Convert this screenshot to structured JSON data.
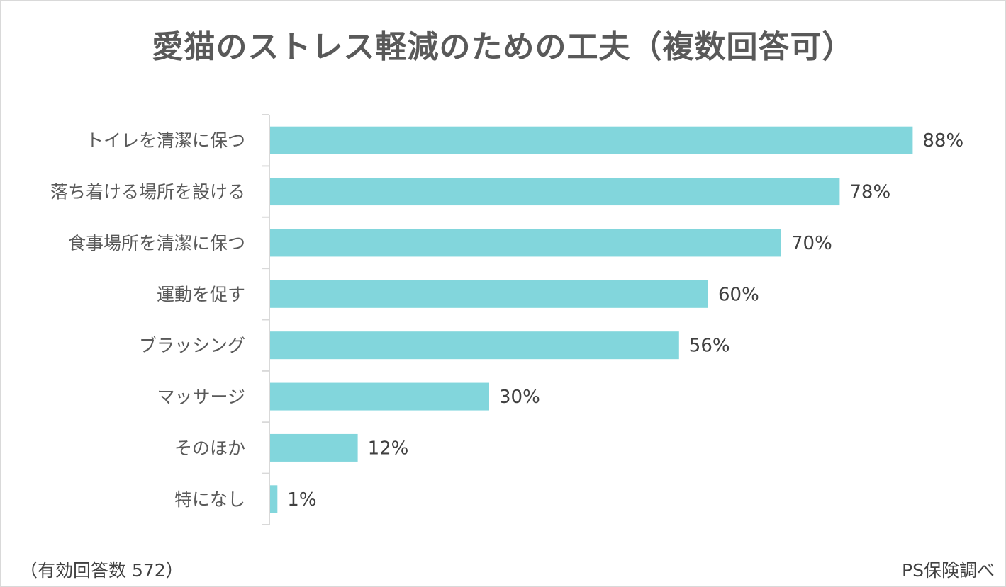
{
  "chart_data": {
    "type": "bar",
    "orientation": "horizontal",
    "title": "愛猫のストレス軽減のための工夫（複数回答可）",
    "categories": [
      "トイレを清潔に保つ",
      "落ち着ける場所を設ける",
      "食事場所を清潔に保つ",
      "運動を促す",
      "ブラッシング",
      "マッサージ",
      "そのほか",
      "特になし"
    ],
    "values": [
      88,
      78,
      70,
      60,
      56,
      30,
      12,
      1
    ],
    "value_labels": [
      "88%",
      "78%",
      "70%",
      "60%",
      "56%",
      "30%",
      "12%",
      "1%"
    ],
    "unit": "%",
    "xlim": [
      0,
      100
    ],
    "grid": false,
    "legend": "none",
    "bar_color": "#82d6dc"
  },
  "footer": {
    "note": "（有効回答数 572）",
    "source": "PS保険調べ"
  },
  "colors": {
    "axis": "#d9d9d9",
    "text": "#595959"
  }
}
